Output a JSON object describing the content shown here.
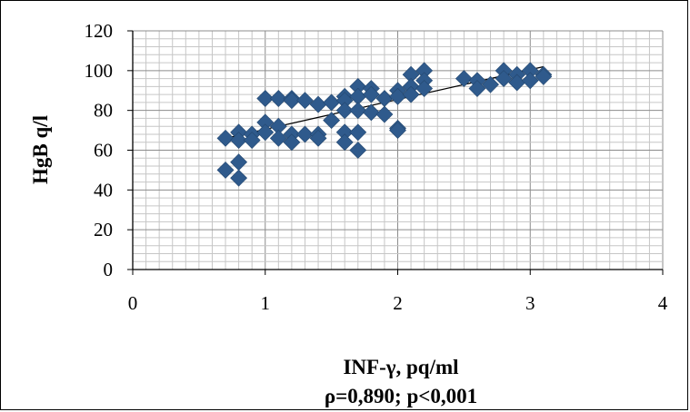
{
  "chart_data": {
    "type": "scatter",
    "title": "",
    "xlabel": "INF-γ, pq/ml",
    "ylabel": "HgB q/l",
    "annotation": "ρ=0,890; p<0,001",
    "xlim": [
      0,
      4
    ],
    "ylim": [
      0,
      120
    ],
    "x_ticks": [
      "0",
      "1",
      "2",
      "3",
      "4"
    ],
    "y_ticks": [
      "0",
      "20",
      "40",
      "60",
      "80",
      "100",
      "120"
    ],
    "grid": true,
    "legend": "none",
    "marker_color": "#2F5A8C",
    "trendline": {
      "x": [
        0.7,
        3.1
      ],
      "y": [
        66,
        102
      ]
    },
    "points": [
      {
        "x": 0.7,
        "y": 66
      },
      {
        "x": 0.7,
        "y": 50
      },
      {
        "x": 0.8,
        "y": 69
      },
      {
        "x": 0.8,
        "y": 65
      },
      {
        "x": 0.8,
        "y": 54
      },
      {
        "x": 0.8,
        "y": 46
      },
      {
        "x": 0.9,
        "y": 68
      },
      {
        "x": 0.9,
        "y": 65
      },
      {
        "x": 1.0,
        "y": 86
      },
      {
        "x": 1.0,
        "y": 74
      },
      {
        "x": 1.0,
        "y": 69
      },
      {
        "x": 1.1,
        "y": 86
      },
      {
        "x": 1.1,
        "y": 72
      },
      {
        "x": 1.1,
        "y": 66
      },
      {
        "x": 1.2,
        "y": 86
      },
      {
        "x": 1.2,
        "y": 85
      },
      {
        "x": 1.2,
        "y": 68
      },
      {
        "x": 1.2,
        "y": 64
      },
      {
        "x": 1.3,
        "y": 85
      },
      {
        "x": 1.3,
        "y": 68
      },
      {
        "x": 1.4,
        "y": 83
      },
      {
        "x": 1.4,
        "y": 68
      },
      {
        "x": 1.4,
        "y": 66
      },
      {
        "x": 1.5,
        "y": 84
      },
      {
        "x": 1.5,
        "y": 75
      },
      {
        "x": 1.6,
        "y": 87
      },
      {
        "x": 1.6,
        "y": 85
      },
      {
        "x": 1.6,
        "y": 80
      },
      {
        "x": 1.6,
        "y": 69
      },
      {
        "x": 1.6,
        "y": 64
      },
      {
        "x": 1.7,
        "y": 92
      },
      {
        "x": 1.7,
        "y": 87
      },
      {
        "x": 1.7,
        "y": 80
      },
      {
        "x": 1.7,
        "y": 69
      },
      {
        "x": 1.7,
        "y": 60
      },
      {
        "x": 1.8,
        "y": 91
      },
      {
        "x": 1.8,
        "y": 88
      },
      {
        "x": 1.8,
        "y": 79
      },
      {
        "x": 1.9,
        "y": 86
      },
      {
        "x": 1.9,
        "y": 78
      },
      {
        "x": 2.0,
        "y": 90
      },
      {
        "x": 2.0,
        "y": 87
      },
      {
        "x": 2.0,
        "y": 71
      },
      {
        "x": 2.0,
        "y": 70
      },
      {
        "x": 2.1,
        "y": 98
      },
      {
        "x": 2.1,
        "y": 92
      },
      {
        "x": 2.1,
        "y": 88
      },
      {
        "x": 2.2,
        "y": 100
      },
      {
        "x": 2.2,
        "y": 95
      },
      {
        "x": 2.2,
        "y": 91
      },
      {
        "x": 2.5,
        "y": 96
      },
      {
        "x": 2.6,
        "y": 95
      },
      {
        "x": 2.6,
        "y": 91
      },
      {
        "x": 2.7,
        "y": 93
      },
      {
        "x": 2.8,
        "y": 100
      },
      {
        "x": 2.8,
        "y": 96
      },
      {
        "x": 2.9,
        "y": 98
      },
      {
        "x": 2.9,
        "y": 94
      },
      {
        "x": 3.0,
        "y": 100
      },
      {
        "x": 3.0,
        "y": 95
      },
      {
        "x": 3.1,
        "y": 98
      },
      {
        "x": 3.1,
        "y": 97
      }
    ]
  }
}
